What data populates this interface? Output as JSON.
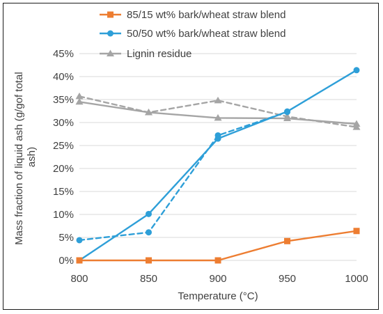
{
  "chart_data": {
    "type": "line",
    "xlabel": "Temperature (°C)",
    "ylabel_lines": [
      "Mass fraction of liquid ash (g/gof total",
      "ash)"
    ],
    "x_ticks": [
      "800",
      "850",
      "900",
      "950",
      "1000"
    ],
    "y_ticks": [
      "0%",
      "5%",
      "10%",
      "15%",
      "20%",
      "25%",
      "30%",
      "35%",
      "40%",
      "45%"
    ],
    "xlim": [
      800,
      1000
    ],
    "ylim": [
      0,
      45
    ],
    "legend_position": "top",
    "grid": "horizontal",
    "series": [
      {
        "name": "85/15 wt% bark/wheat straw blend",
        "color": "#ED7D31",
        "marker": "square",
        "style": "solid",
        "x": [
          800,
          850,
          900,
          950,
          1000
        ],
        "y": [
          0,
          0,
          0,
          4.2,
          6.4
        ]
      },
      {
        "name": "50/50 wt% bark/wheat straw blend",
        "color": "#2E9FD8",
        "marker": "circle",
        "style": "solid",
        "x": [
          800,
          850,
          900,
          950,
          1000
        ],
        "y": [
          0,
          10.1,
          26.5,
          32.4,
          41.4
        ]
      },
      {
        "name": "",
        "color": "#2E9FD8",
        "marker": "circle",
        "style": "dashed",
        "x": [
          800,
          850,
          900,
          950
        ],
        "y": [
          4.4,
          6.1,
          27.2,
          32.3
        ]
      },
      {
        "name": "Lignin residue",
        "color": "#A5A5A5",
        "marker": "triangle",
        "style": "solid",
        "x": [
          800,
          850,
          900,
          950,
          1000
        ],
        "y": [
          34.5,
          32.2,
          31.0,
          30.9,
          29.7
        ]
      },
      {
        "name": "",
        "color": "#A5A5A5",
        "marker": "triangle",
        "style": "dashed",
        "x": [
          800,
          850,
          900,
          950,
          1000
        ],
        "y": [
          35.7,
          32.2,
          34.8,
          31.3,
          29.0
        ]
      }
    ]
  }
}
